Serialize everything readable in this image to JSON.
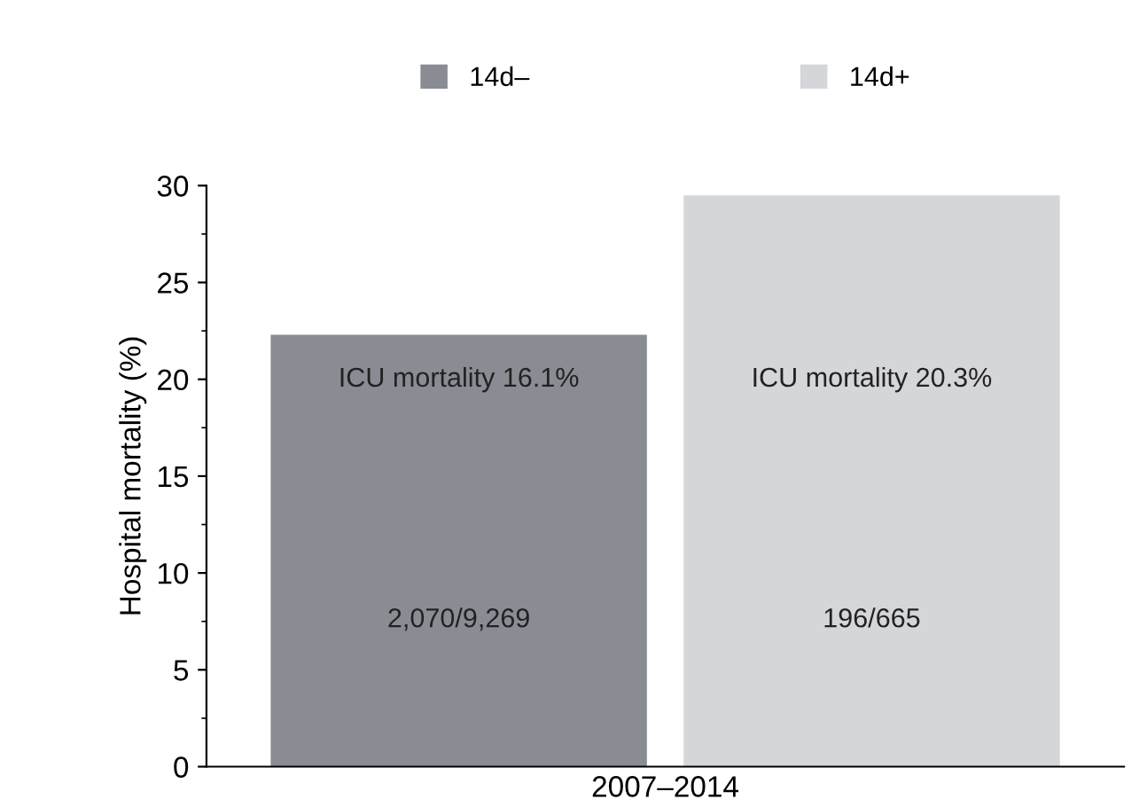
{
  "chart_data": {
    "type": "bar",
    "ylabel": "Hospital mortality (%)",
    "categories": [
      "2007–2014"
    ],
    "series": [
      {
        "name": "14d–",
        "color": "#8a8c94",
        "values": [
          22.3
        ]
      },
      {
        "name": "14d+",
        "color": "#d5d6d9",
        "values": [
          29.5
        ]
      }
    ],
    "ylim": [
      0,
      30
    ],
    "yticks": [
      0,
      5,
      10,
      15,
      20,
      25,
      30
    ],
    "legend": "top",
    "grid": false,
    "annotations": [
      "ICU mortality 16.1%",
      "2,070/9,269",
      "ICU mortality 20.3%",
      "196/665"
    ]
  }
}
